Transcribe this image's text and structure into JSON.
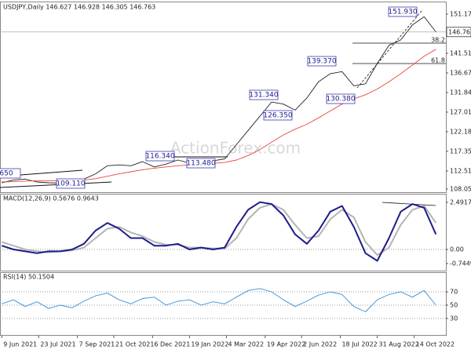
{
  "watermark": "ActionForex.com",
  "chart_data": [
    {
      "type": "line",
      "title": "USDJPY,Daily 146.627 146.928 146.305 146.763",
      "x": [
        0,
        2,
        4,
        6,
        8,
        10,
        12,
        14,
        16,
        18,
        20,
        22,
        24,
        26,
        28,
        30,
        32,
        34,
        36,
        38,
        40,
        42,
        44,
        46,
        48,
        50,
        52,
        54,
        56,
        58,
        60,
        62,
        64,
        66,
        68,
        70,
        72,
        74
      ],
      "xlim": [
        -0.3,
        75.7
      ],
      "ylim": [
        107.28,
        153.68
      ],
      "yticks": [
        {
          "value": 151.17,
          "label": "151.170"
        },
        {
          "value": 141.51,
          "label": "141.510"
        },
        {
          "value": 136.67,
          "label": "136.670"
        },
        {
          "value": 131.84,
          "label": "131.840"
        },
        {
          "value": 127.01,
          "label": "127.010"
        },
        {
          "value": 122.18,
          "label": "122.180"
        },
        {
          "value": 117.35,
          "label": "117.350"
        },
        {
          "value": 112.51,
          "label": "112.510"
        },
        {
          "value": 108.05,
          "label": "108.050"
        }
      ],
      "last_price": 146.763,
      "series": [
        {
          "color": "#222222",
          "values": [
            109.6,
            110.3,
            110.5,
            109.8,
            109.6,
            109.5,
            110.0,
            110.5,
            111.8,
            113.8,
            114.0,
            113.8,
            114.8,
            113.5,
            114.2,
            115.2,
            114.5,
            115.2,
            115.0,
            115.5,
            119.0,
            122.5,
            126.0,
            129.5,
            129.0,
            127.5,
            130.5,
            134.5,
            136.5,
            137.0,
            133.5,
            134.0,
            139.0,
            143.5,
            144.8,
            148.5,
            150.5,
            146.8
          ]
        },
        {
          "color": "#e8463c",
          "values": [
            109.8,
            109.9,
            110.0,
            110.1,
            110.1,
            110.1,
            110.2,
            110.3,
            110.6,
            111.2,
            111.8,
            112.3,
            112.8,
            113.2,
            113.5,
            113.8,
            114.0,
            114.2,
            114.4,
            114.6,
            115.2,
            116.3,
            117.8,
            119.6,
            121.4,
            122.8,
            124.0,
            125.6,
            127.3,
            129.0,
            130.3,
            131.3,
            132.7,
            134.5,
            136.5,
            138.6,
            140.8,
            142.5
          ]
        }
      ],
      "annotations": [
        "151.930",
        "139.370",
        "131.340",
        "126.350",
        "130.380",
        "116.340",
        "113.480",
        "109.110",
        "650",
        "38.2",
        "61.8"
      ]
    },
    {
      "type": "line",
      "title": "MACD(12,26,9) 0.5676 0.9643",
      "x": [
        0,
        2,
        4,
        6,
        8,
        10,
        12,
        14,
        16,
        18,
        20,
        22,
        24,
        26,
        28,
        30,
        32,
        34,
        36,
        38,
        40,
        42,
        44,
        46,
        48,
        50,
        52,
        54,
        56,
        58,
        60,
        62,
        64,
        66,
        68,
        70,
        72,
        74
      ],
      "xlim": [
        -0.3,
        75.7
      ],
      "ylim": [
        -1.12,
        2.82
      ],
      "yticks": [
        2.4917,
        {
          "value": 0,
          "label": "0.00"
        },
        -0.7449
      ],
      "series": [
        {
          "color": "#b4b4b4",
          "values": [
            0.4,
            0.2,
            0.0,
            -0.1,
            -0.15,
            -0.1,
            -0.05,
            0.1,
            0.6,
            1.1,
            1.2,
            0.9,
            0.7,
            0.4,
            0.25,
            0.25,
            0.1,
            0.1,
            0.05,
            0.05,
            0.6,
            1.6,
            2.2,
            2.4,
            2.1,
            1.3,
            0.6,
            0.7,
            1.6,
            2.1,
            1.7,
            0.4,
            -0.3,
            0.1,
            1.3,
            2.1,
            2.3,
            1.4
          ]
        },
        {
          "color": "#1c1c8c",
          "values": [
            0.2,
            0.0,
            -0.1,
            -0.2,
            -0.1,
            -0.1,
            0.0,
            0.3,
            1.0,
            1.4,
            1.1,
            0.6,
            0.6,
            0.2,
            0.2,
            0.3,
            0.0,
            0.1,
            0.0,
            0.1,
            1.2,
            2.1,
            2.5,
            2.4,
            1.8,
            0.8,
            0.3,
            1.0,
            2.0,
            2.3,
            1.2,
            -0.2,
            -0.6,
            0.6,
            2.0,
            2.4,
            2.2,
            0.8
          ]
        }
      ]
    },
    {
      "type": "line",
      "title": "RSI(14) 50.1504",
      "x": [
        0,
        2,
        4,
        6,
        8,
        10,
        12,
        14,
        16,
        18,
        20,
        22,
        24,
        26,
        28,
        30,
        32,
        34,
        36,
        38,
        40,
        42,
        44,
        46,
        48,
        50,
        52,
        54,
        56,
        58,
        60,
        62,
        64,
        66,
        68,
        70,
        72,
        74
      ],
      "xlim": [
        -0.3,
        75.7
      ],
      "ylim": [
        7.6,
        95.9
      ],
      "yticks": [
        70,
        50,
        30
      ],
      "xticks": [
        {
          "value": 0,
          "label": "9 Jun 2021"
        },
        {
          "value": 6.3,
          "label": "23 Jul 2021"
        },
        {
          "value": 12.9,
          "label": "7 Sep 2021"
        },
        {
          "value": 19.1,
          "label": "21 Oct 2021"
        },
        {
          "value": 25.7,
          "label": "6 Dec 2021"
        },
        {
          "value": 32,
          "label": "19 Jan 2022"
        },
        {
          "value": 38.3,
          "label": "4 Mar 2022"
        },
        {
          "value": 44.9,
          "label": "19 Apr 2022"
        },
        {
          "value": 51.1,
          "label": "2 Jun 2022"
        },
        {
          "value": 57.7,
          "label": "18 Jul 2022"
        },
        {
          "value": 64,
          "label": "31 Aug 2022"
        },
        {
          "value": 70.3,
          "label": "14 Oct 2022"
        }
      ],
      "series": [
        {
          "color": "#3a8fd8",
          "values": [
            52,
            58,
            48,
            55,
            45,
            50,
            46,
            56,
            64,
            68,
            58,
            52,
            60,
            62,
            50,
            56,
            58,
            50,
            55,
            52,
            62,
            72,
            75,
            70,
            58,
            48,
            56,
            65,
            70,
            66,
            48,
            40,
            58,
            66,
            70,
            62,
            72,
            50
          ]
        }
      ]
    }
  ]
}
